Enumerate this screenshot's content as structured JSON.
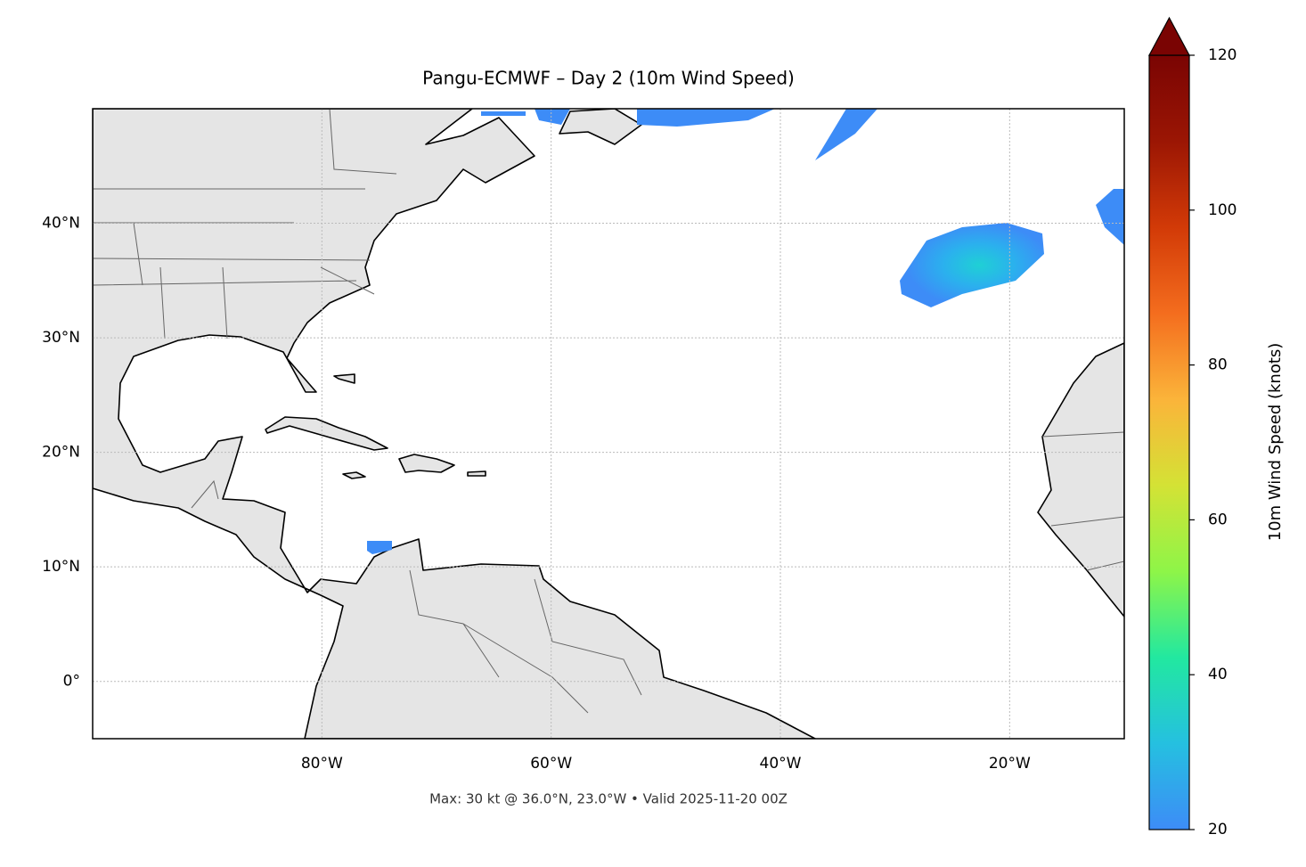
{
  "chart_data": {
    "type": "map",
    "title": "Pangu-ECMWF – Day 2 (10m Wind Speed)",
    "footer": "Max: 30 kt @ 36.0°N, 23.0°W • Valid 2025-11-20 00Z",
    "xlim": [
      -100,
      -10
    ],
    "ylim": [
      -5,
      50
    ],
    "xticks": [
      {
        "value": -80,
        "label": "80°W"
      },
      {
        "value": -60,
        "label": "60°W"
      },
      {
        "value": -40,
        "label": "40°W"
      },
      {
        "value": -20,
        "label": "20°W"
      }
    ],
    "yticks": [
      {
        "value": 0,
        "label": "0°"
      },
      {
        "value": 10,
        "label": "10°N"
      },
      {
        "value": 20,
        "label": "20°N"
      },
      {
        "value": 30,
        "label": "30°N"
      },
      {
        "value": 40,
        "label": "40°N"
      }
    ],
    "grid": true,
    "colorbar": {
      "label": "10m Wind Speed (knots)",
      "lim": [
        20,
        120
      ],
      "ticks": [
        20,
        40,
        60,
        80,
        100,
        120
      ],
      "colors": [
        "#3d8cf7",
        "#25c0e0",
        "#22e8a0",
        "#8ef548",
        "#d4e235",
        "#fbb43a",
        "#f46d1e",
        "#d23a07",
        "#9b1604",
        "#7a0403"
      ]
    }
  }
}
